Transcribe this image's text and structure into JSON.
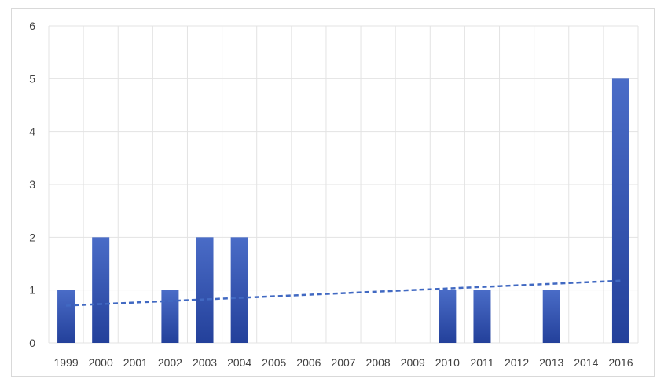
{
  "chart_data": {
    "type": "bar",
    "title": "",
    "xlabel": "",
    "ylabel": "",
    "categories": [
      "1999",
      "2000",
      "2001",
      "2002",
      "2003",
      "2004",
      "2005",
      "2006",
      "2007",
      "2008",
      "2009",
      "2010",
      "2011",
      "2012",
      "2013",
      "2014",
      "2016"
    ],
    "values": [
      1,
      2,
      0,
      1,
      2,
      2,
      0,
      0,
      0,
      0,
      0,
      1,
      1,
      0,
      1,
      0,
      5
    ],
    "ylim": [
      0,
      6
    ],
    "yticks": [
      "0",
      "1",
      "2",
      "3",
      "4",
      "5",
      "6"
    ],
    "grid": true,
    "legend": "none",
    "bar_color_top": "#4a6cc7",
    "bar_color_bottom": "#23409a",
    "grid_color": "#e3e3e3",
    "trendline": {
      "style": "dashed",
      "type": "linear",
      "color": "#4169c2"
    }
  }
}
